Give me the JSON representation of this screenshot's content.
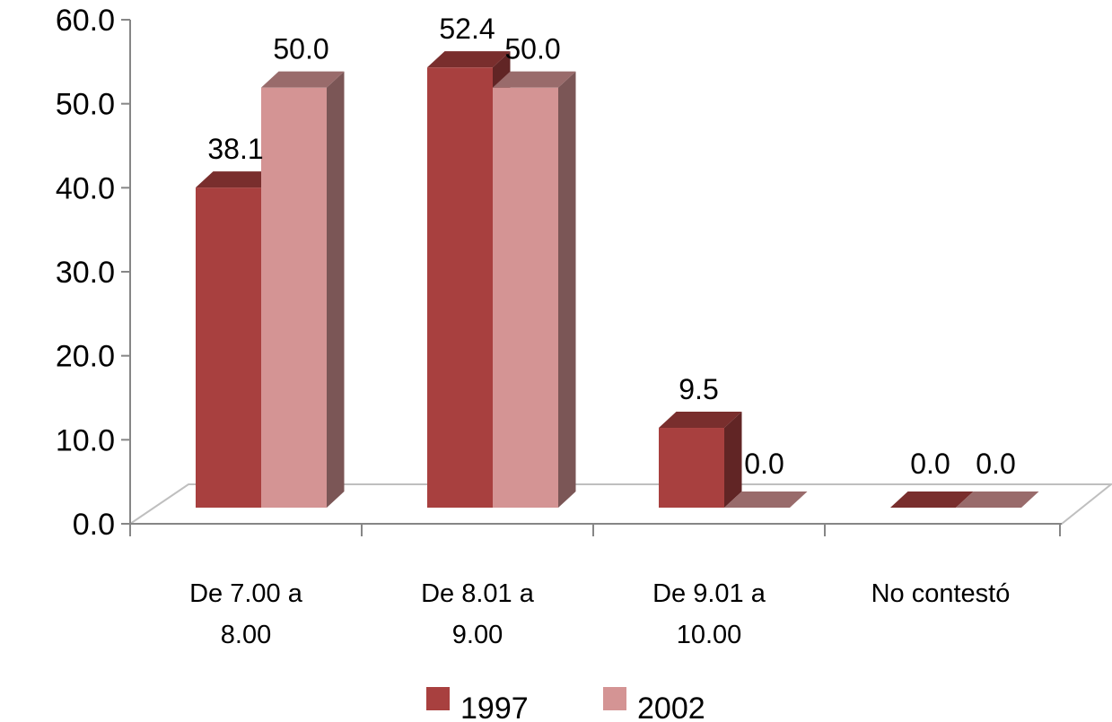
{
  "chart_data": {
    "type": "bar",
    "style": "3d-clustered-column",
    "categories": [
      [
        "De 7.00 a",
        "8.00"
      ],
      [
        "De 8.01 a",
        "9.00"
      ],
      [
        "De 9.01 a",
        "10.00"
      ],
      [
        "No contestó"
      ]
    ],
    "series": [
      {
        "name": "1997",
        "values": [
          38.1,
          52.4,
          9.5,
          0.0
        ],
        "labels": [
          "38.1",
          "52.4",
          "9.5",
          "0.0"
        ],
        "color": "#a8403f"
      },
      {
        "name": "2002",
        "values": [
          50.0,
          50.0,
          0.0,
          0.0
        ],
        "labels": [
          "50.0",
          "50.0",
          "0.0",
          "0.0"
        ],
        "color": "#d49494"
      }
    ],
    "ylim": [
      0,
      60
    ],
    "yticks": [
      "0.0",
      "10.0",
      "20.0",
      "30.0",
      "40.0",
      "50.0",
      "60.0"
    ],
    "title": "",
    "xlabel": "",
    "ylabel": "",
    "grid": false,
    "legend": "bottom-center"
  }
}
